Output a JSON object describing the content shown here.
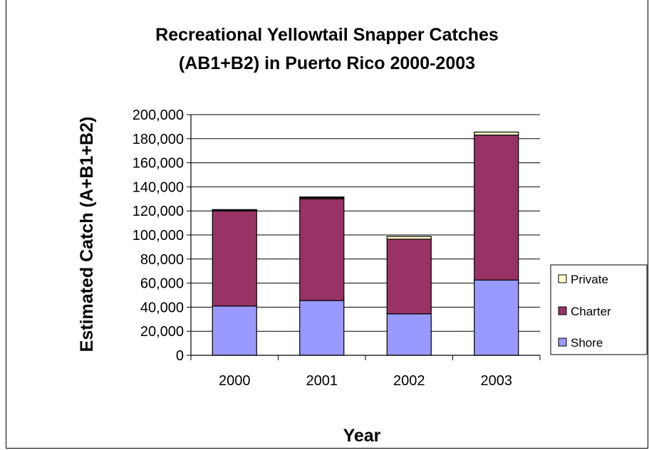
{
  "chart_data": {
    "type": "bar",
    "stacked": true,
    "title": [
      "Recreational Yellowtail Snapper Catches",
      "(AB1+B2) in Puerto Rico 2000-2003"
    ],
    "xlabel": "Year",
    "ylabel": "Estimated Catch (A+B1+B2)",
    "categories": [
      "2000",
      "2001",
      "2002",
      "2003"
    ],
    "ylim": [
      0,
      200000
    ],
    "yticks": [
      "0",
      "20,000",
      "40,000",
      "60,000",
      "80,000",
      "100,000",
      "120,000",
      "140,000",
      "160,000",
      "180,000",
      "200,000"
    ],
    "grid": true,
    "legend_position": "right",
    "legend_order": [
      "Private",
      "Charter",
      "Shore"
    ],
    "series": [
      {
        "name": "Shore",
        "color": "#9999ff",
        "values": [
          41000,
          45500,
          34500,
          62500
        ]
      },
      {
        "name": "Charter",
        "color": "#993366",
        "values": [
          79000,
          84500,
          62000,
          120500
        ]
      },
      {
        "name": "Private",
        "color": "#ffffcc",
        "values": [
          600,
          800,
          2300,
          2500
        ]
      },
      {
        "name": "",
        "color": "#000000",
        "values": [
          500,
          800,
          0,
          0
        ]
      }
    ]
  }
}
